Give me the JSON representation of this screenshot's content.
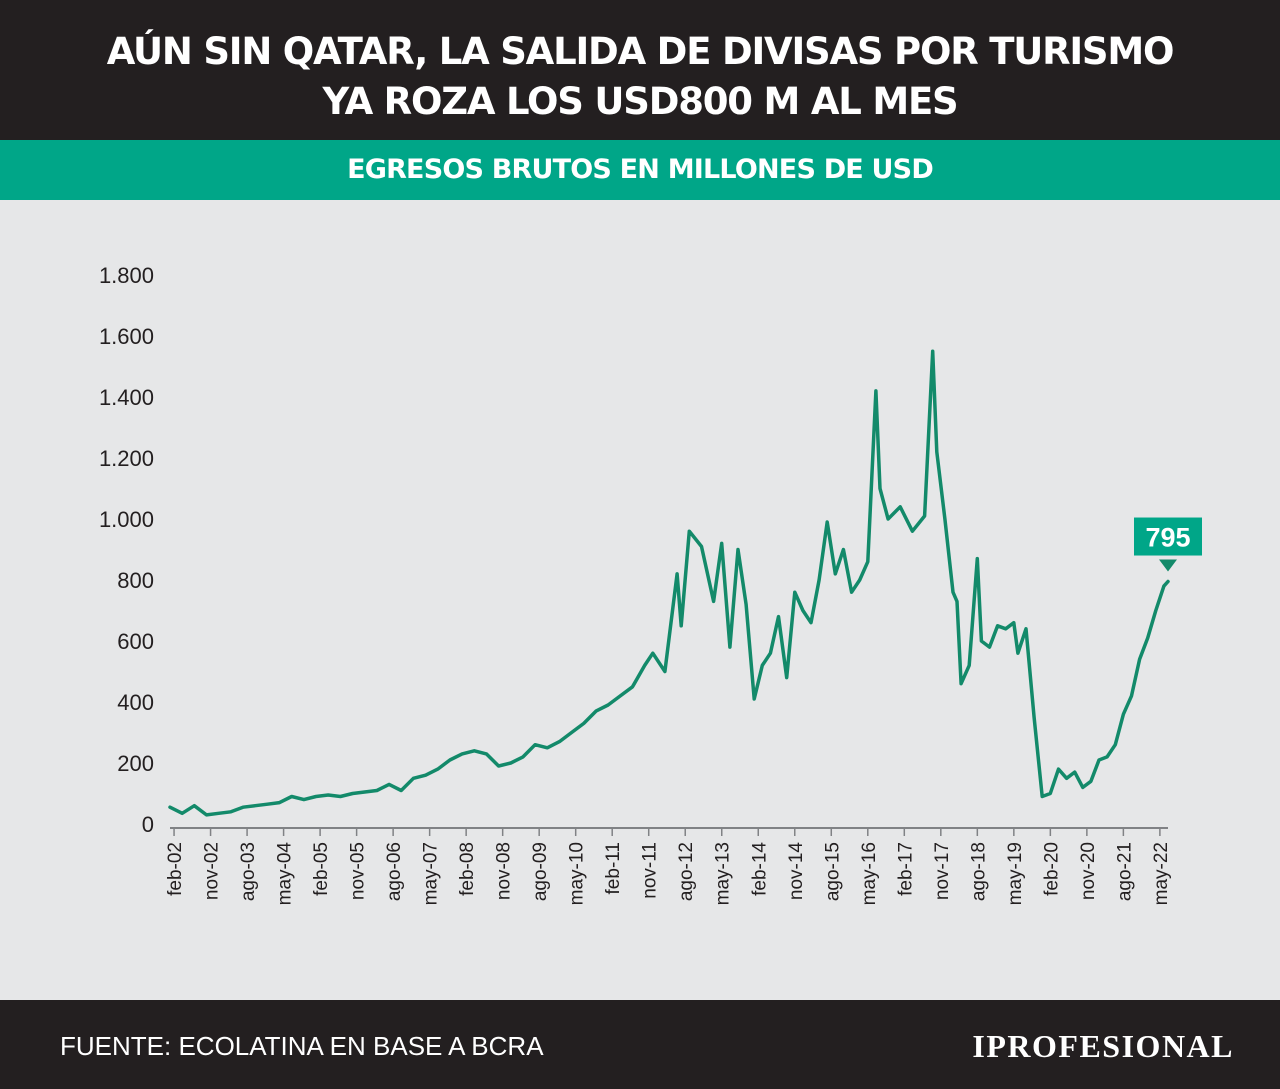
{
  "header": {
    "title_line1": "AÚN SIN QATAR, LA SALIDA DE DIVISAS POR TURISMO",
    "title_line2": "YA ROZA LOS USD800 M AL MES",
    "subtitle": "EGRESOS BRUTOS EN MILLONES DE USD"
  },
  "footer": {
    "source": "FUENTE: ECOLATINA EN BASE A BCRA",
    "logo_text": "IPROFESIONAL"
  },
  "colors": {
    "header_bg": "#231f20",
    "accent": "#00a688",
    "line": "#138a6a",
    "plot_bg": "#e6e7e8",
    "text": "#231f20"
  },
  "chart_data": {
    "type": "line",
    "x_start": "2002-01",
    "x_end": "2022-07",
    "x_tick_labels": [
      "feb-02",
      "nov-02",
      "ago-03",
      "may-04",
      "feb-05",
      "nov-05",
      "ago-06",
      "may-07",
      "feb-08",
      "nov-08",
      "ago-09",
      "may-10",
      "feb-11",
      "nov-11",
      "ago-12",
      "may-13",
      "feb-14",
      "nov-14",
      "ago-15",
      "may-16",
      "feb-17",
      "nov-17",
      "ago-18",
      "may-19",
      "feb-20",
      "nov-20",
      "ago-21",
      "may-22"
    ],
    "y_ticks": [
      0,
      200,
      400,
      600,
      800,
      1000,
      1200,
      1400,
      1600,
      1800
    ],
    "y_tick_labels": [
      "0",
      "200",
      "400",
      "600",
      "800",
      "1.000",
      "1.200",
      "1.400",
      "1.600",
      "1.800"
    ],
    "ylim": [
      0,
      1800
    ],
    "x": [
      "2002-01",
      "2002-04",
      "2002-07",
      "2002-10",
      "2003-01",
      "2003-04",
      "2003-07",
      "2003-10",
      "2004-01",
      "2004-04",
      "2004-07",
      "2004-10",
      "2005-01",
      "2005-04",
      "2005-07",
      "2005-10",
      "2006-01",
      "2006-04",
      "2006-07",
      "2006-10",
      "2007-01",
      "2007-04",
      "2007-07",
      "2007-10",
      "2008-01",
      "2008-04",
      "2008-07",
      "2008-10",
      "2009-01",
      "2009-04",
      "2009-07",
      "2009-10",
      "2010-01",
      "2010-04",
      "2010-07",
      "2010-10",
      "2011-01",
      "2011-04",
      "2011-07",
      "2011-10",
      "2011-12",
      "2012-03",
      "2012-06",
      "2012-07",
      "2012-09",
      "2012-12",
      "2013-03",
      "2013-05",
      "2013-07",
      "2013-09",
      "2013-11",
      "2014-01",
      "2014-03",
      "2014-05",
      "2014-07",
      "2014-09",
      "2014-11",
      "2015-01",
      "2015-03",
      "2015-05",
      "2015-07",
      "2015-09",
      "2015-11",
      "2016-01",
      "2016-03",
      "2016-05",
      "2016-07",
      "2016-08",
      "2016-10",
      "2017-01",
      "2017-04",
      "2017-07",
      "2017-09",
      "2017-10",
      "2017-12",
      "2018-02",
      "2018-03",
      "2018-04",
      "2018-06",
      "2018-08",
      "2018-09",
      "2018-11",
      "2019-01",
      "2019-03",
      "2019-05",
      "2019-06",
      "2019-08",
      "2019-10",
      "2019-12",
      "2020-02",
      "2020-04",
      "2020-06",
      "2020-08",
      "2020-10",
      "2020-12",
      "2021-02",
      "2021-04",
      "2021-06",
      "2021-08",
      "2021-10",
      "2021-12",
      "2022-02",
      "2022-04",
      "2022-06",
      "2022-07"
    ],
    "values": [
      55,
      35,
      60,
      30,
      35,
      40,
      55,
      60,
      65,
      70,
      90,
      80,
      90,
      95,
      90,
      100,
      105,
      110,
      130,
      110,
      150,
      160,
      180,
      210,
      230,
      240,
      230,
      190,
      200,
      220,
      260,
      250,
      270,
      300,
      330,
      370,
      390,
      420,
      450,
      520,
      560,
      500,
      820,
      650,
      960,
      910,
      730,
      920,
      580,
      900,
      720,
      410,
      520,
      560,
      680,
      480,
      760,
      700,
      660,
      800,
      990,
      820,
      900,
      760,
      800,
      860,
      1420,
      1100,
      1000,
      1040,
      960,
      1010,
      1550,
      1220,
      1000,
      760,
      730,
      460,
      520,
      870,
      600,
      580,
      650,
      640,
      660,
      560,
      640,
      350,
      90,
      100,
      180,
      150,
      170,
      120,
      140,
      210,
      220,
      260,
      360,
      420,
      540,
      610,
      700,
      780,
      795
    ],
    "annotation": {
      "label": "795",
      "x": "2022-07",
      "value": 795
    }
  }
}
